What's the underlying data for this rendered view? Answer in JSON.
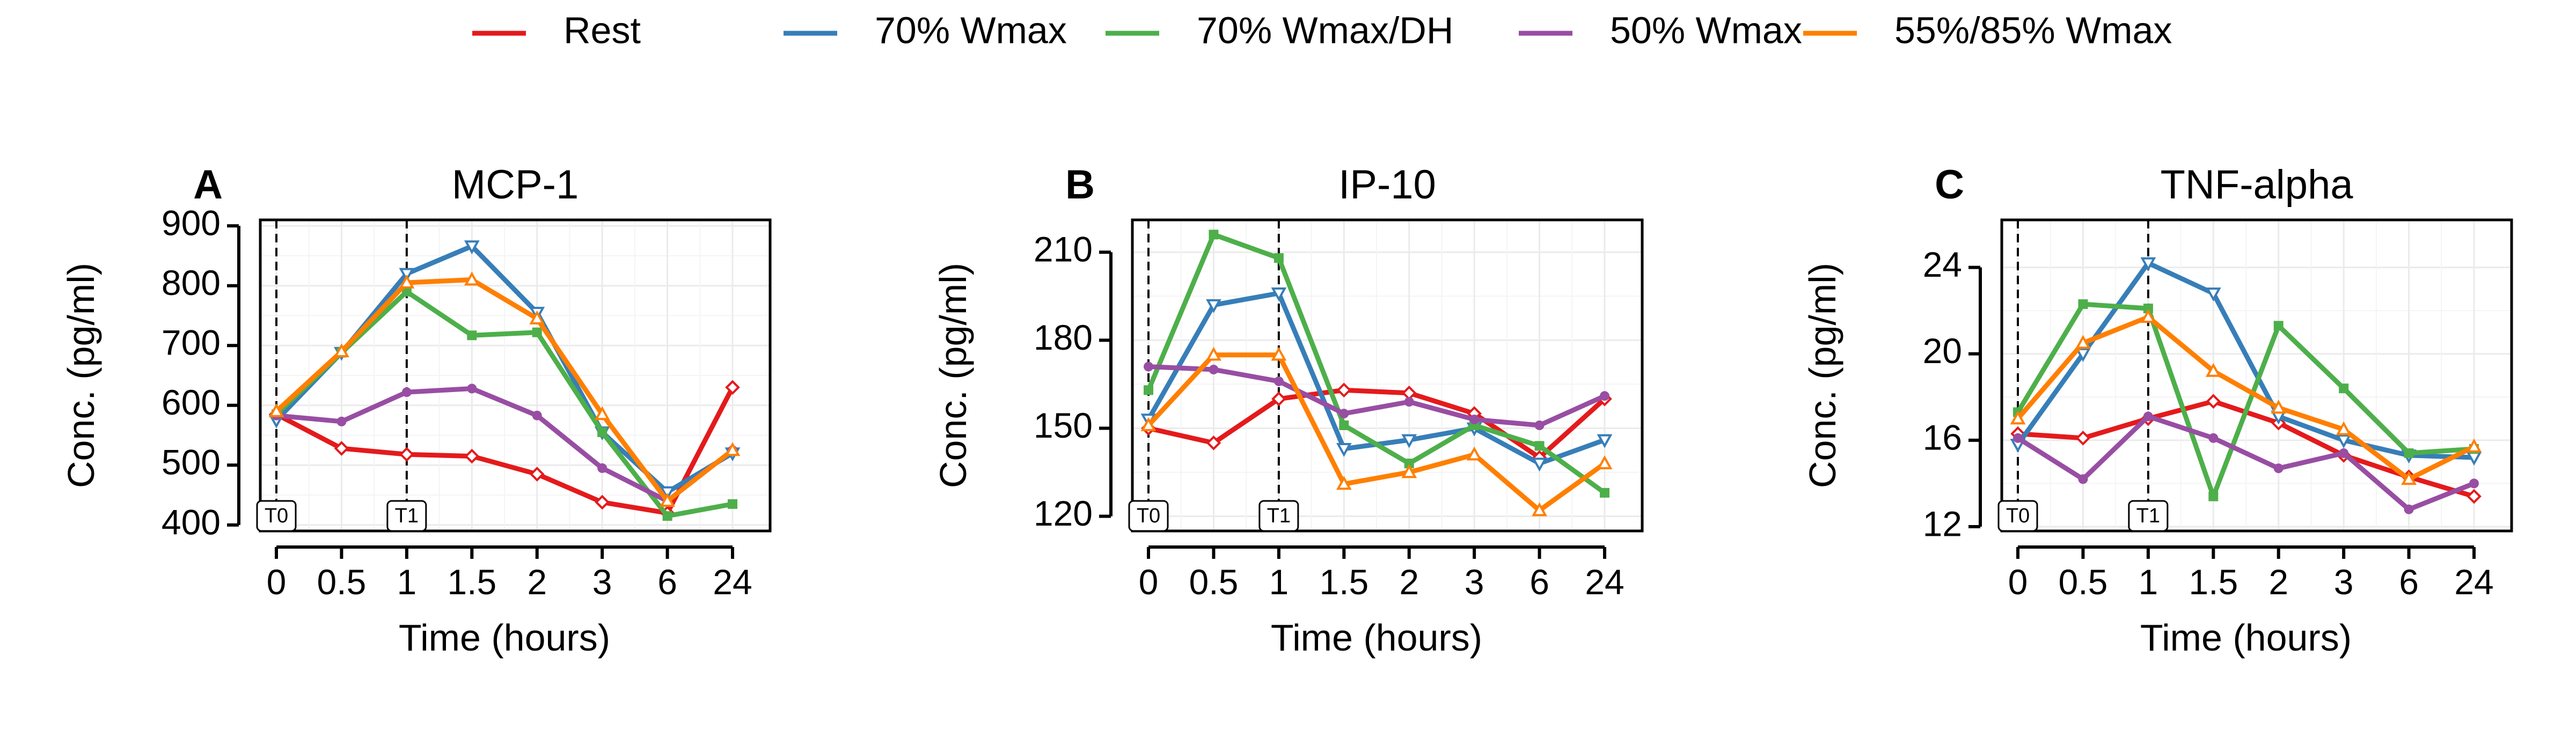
{
  "legend": {
    "position": "top",
    "items": [
      {
        "name": "Rest",
        "color": "#e41a1c"
      },
      {
        "name": "70% Wmax",
        "color": "#377eb8"
      },
      {
        "name": "70% Wmax/DH",
        "color": "#4daf4a"
      },
      {
        "name": "50% Wmax",
        "color": "#984ea3"
      },
      {
        "name": "55%/85% Wmax",
        "color": "#ff7f00"
      }
    ]
  },
  "chart_data": [
    {
      "type": "line",
      "letter": "A",
      "title": "MCP-1",
      "xlabel": "Time (hours)",
      "ylabel": "Conc. (pg/ml)",
      "x": [
        "0",
        "0.5",
        "1",
        "1.5",
        "2",
        "3",
        "6",
        "24"
      ],
      "ylim": [
        390,
        910
      ],
      "yticks": [
        "400",
        "500",
        "600",
        "700",
        "800",
        "900"
      ],
      "ytick_values": [
        400,
        500,
        600,
        700,
        800,
        900
      ],
      "grid": true,
      "markers": [
        {
          "label": "T0",
          "x": "0"
        },
        {
          "label": "T1",
          "x": "1"
        }
      ],
      "series": [
        {
          "name": "Rest",
          "values": [
            585,
            528,
            518,
            515,
            485,
            438,
            420,
            630
          ]
        },
        {
          "name": "70% Wmax",
          "values": [
            575,
            688,
            820,
            866,
            755,
            555,
            455,
            520
          ]
        },
        {
          "name": "70% Wmax/DH",
          "values": [
            585,
            688,
            790,
            717,
            722,
            555,
            415,
            435
          ]
        },
        {
          "name": "50% Wmax",
          "values": [
            583,
            573,
            622,
            628,
            583,
            495,
            440,
            525
          ]
        },
        {
          "name": "55%/85% Wmax",
          "values": [
            590,
            690,
            805,
            810,
            745,
            585,
            440,
            525
          ]
        }
      ]
    },
    {
      "type": "line",
      "letter": "B",
      "title": "IP-10",
      "xlabel": "Time (hours)",
      "ylabel": "Conc. (pg/ml)",
      "x": [
        "0",
        "0.5",
        "1",
        "1.5",
        "2",
        "3",
        "6",
        "24"
      ],
      "ylim": [
        115,
        221
      ],
      "yticks": [
        "120",
        "150",
        "180",
        "210"
      ],
      "ytick_values": [
        120,
        150,
        180,
        210
      ],
      "grid": true,
      "markers": [
        {
          "label": "T0",
          "x": "0"
        },
        {
          "label": "T1",
          "x": "1"
        }
      ],
      "series": [
        {
          "name": "Rest",
          "values": [
            150,
            145,
            160,
            163,
            162,
            155,
            140,
            160
          ]
        },
        {
          "name": "70% Wmax",
          "values": [
            153,
            192,
            196,
            143,
            146,
            150,
            138,
            146
          ]
        },
        {
          "name": "70% Wmax/DH",
          "values": [
            163,
            216,
            208,
            151,
            138,
            151,
            144,
            128
          ]
        },
        {
          "name": "50% Wmax",
          "values": [
            171,
            170,
            166,
            155,
            159,
            153,
            151,
            161
          ]
        },
        {
          "name": "55%/85% Wmax",
          "values": [
            151,
            175,
            175,
            131,
            135,
            141,
            122,
            138
          ]
        }
      ]
    },
    {
      "type": "line",
      "letter": "C",
      "title": "TNF-alpha",
      "xlabel": "Time (hours)",
      "ylabel": "Conc. (pg/ml)",
      "x": [
        "0",
        "0.5",
        "1",
        "1.5",
        "2",
        "3",
        "6",
        "24"
      ],
      "ylim": [
        11.8,
        26.2
      ],
      "yticks": [
        "12",
        "16",
        "20",
        "24"
      ],
      "ytick_values": [
        12,
        16,
        20,
        24
      ],
      "grid": true,
      "markers": [
        {
          "label": "T0",
          "x": "0"
        },
        {
          "label": "T1",
          "x": "1"
        }
      ],
      "series": [
        {
          "name": "Rest",
          "values": [
            16.3,
            16.1,
            17.0,
            17.8,
            16.8,
            15.3,
            14.3,
            13.4
          ]
        },
        {
          "name": "70% Wmax",
          "values": [
            15.8,
            20.0,
            24.2,
            22.8,
            17.1,
            16.0,
            15.3,
            15.2
          ]
        },
        {
          "name": "70% Wmax/DH",
          "values": [
            17.3,
            22.3,
            22.1,
            13.4,
            21.3,
            18.4,
            15.4,
            15.6
          ]
        },
        {
          "name": "50% Wmax",
          "values": [
            16.1,
            14.2,
            17.1,
            16.1,
            14.7,
            15.4,
            12.8,
            14.0
          ]
        },
        {
          "name": "55%/85% Wmax",
          "values": [
            17.0,
            20.5,
            21.7,
            19.2,
            17.5,
            16.5,
            14.2,
            15.7
          ]
        }
      ]
    }
  ]
}
